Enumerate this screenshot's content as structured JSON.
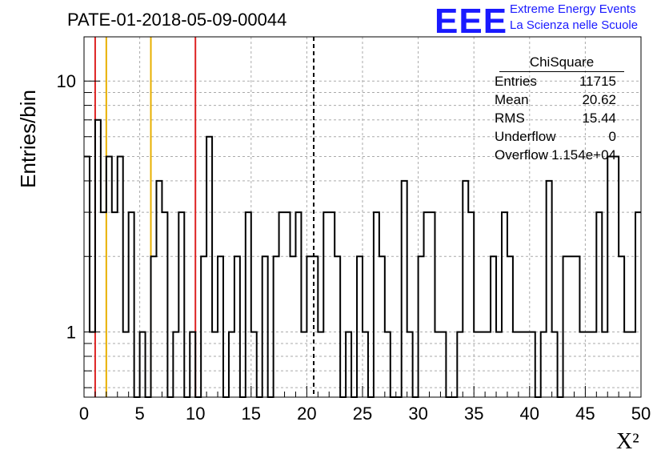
{
  "title": "PATE-01-2018-05-09-00044",
  "logo": {
    "mark": "EEE",
    "line1": "Extreme Energy Events",
    "line2": "La Scienza nelle Scuole",
    "color": "#1a1aff"
  },
  "stats_box": {
    "name": "ChiSquare",
    "rows": [
      {
        "key": "Entries",
        "value": "11715"
      },
      {
        "key": "Mean",
        "value": "20.62"
      },
      {
        "key": "RMS",
        "value": "15.44"
      },
      {
        "key": "Underflow",
        "value": "0"
      },
      {
        "key": "Overflow",
        "value": "1.154e+04"
      }
    ]
  },
  "chart_data": {
    "type": "histogram",
    "xlabel": "X²",
    "ylabel": "Entries/bin",
    "xlim": [
      0,
      50
    ],
    "ylim": [
      0.55,
      15
    ],
    "yscale": "log",
    "grid": true,
    "bin_width": 0.5,
    "x_ticks": [
      0,
      5,
      10,
      15,
      20,
      25,
      30,
      35,
      40,
      45,
      50
    ],
    "y_tick_labels": [
      {
        "value": 1,
        "label": "1"
      },
      {
        "value": 10,
        "label": "10"
      }
    ],
    "counts": [
      5,
      1,
      7,
      3,
      5,
      3,
      5,
      1,
      3,
      0,
      1,
      0,
      2,
      4,
      3,
      0,
      1,
      3,
      0,
      1,
      0,
      2,
      6,
      1,
      2,
      0,
      1,
      2,
      0,
      3,
      1,
      0,
      2,
      0,
      2,
      3,
      3,
      2,
      3,
      1,
      2,
      2,
      1,
      3,
      3,
      2,
      0,
      1,
      0,
      2,
      1,
      0,
      3,
      2,
      1,
      0,
      0,
      4,
      1,
      0,
      2,
      3,
      3,
      1,
      1,
      0,
      0,
      1,
      4,
      3,
      1,
      1,
      1,
      2,
      1,
      3,
      2,
      1,
      1,
      1,
      1,
      0,
      1,
      4,
      1,
      0,
      2,
      2,
      2,
      1,
      1,
      1,
      3,
      1,
      5,
      5,
      2,
      1,
      1,
      3
    ],
    "vertical_lines": [
      {
        "x": 1,
        "style": "solid",
        "color": "#dd2222"
      },
      {
        "x": 2,
        "style": "solid",
        "color": "#e8b000"
      },
      {
        "x": 6,
        "style": "solid",
        "color": "#e8b000"
      },
      {
        "x": 10,
        "style": "solid",
        "color": "#dd2222"
      },
      {
        "x": 20.62,
        "style": "dashed",
        "color": "#000000"
      }
    ]
  }
}
